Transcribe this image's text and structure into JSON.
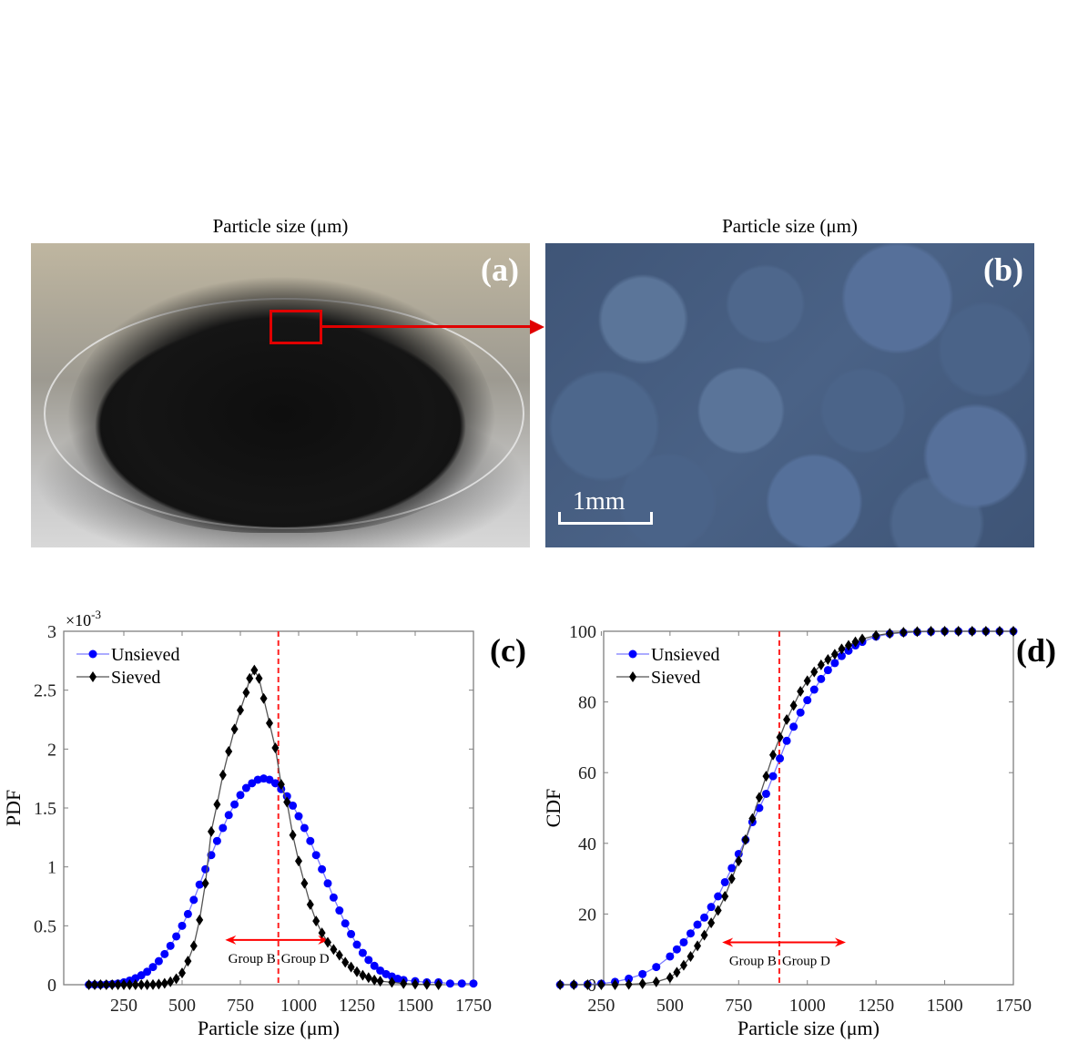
{
  "figure": {
    "panels": [
      {
        "id": "a",
        "label": "(a)",
        "caption": "Particle size (μm)",
        "type": "photo",
        "description": "Petri dish of black granular particles with red zoom box"
      },
      {
        "id": "b",
        "label": "(b)",
        "caption": "Particle size (μm)",
        "type": "photo",
        "description": "Microscope close-up of angular particles",
        "scale_bar_label": "1mm"
      },
      {
        "id": "c",
        "label": "(c)"
      },
      {
        "id": "d",
        "label": "(d)"
      }
    ],
    "colors": {
      "unsieved": "#0000ff",
      "unsieved_line": "#7a7aff",
      "sieved": "#000000",
      "sieved_line": "#555555",
      "threshold": "#ff2020",
      "axis": "#808080",
      "annotation_arrow": "#ff0000"
    }
  },
  "chart_data": [
    {
      "id": "c",
      "type": "line",
      "title": "",
      "xlabel": "Particle size (μm)",
      "ylabel": "PDF",
      "y_multiplier_label": "×10-3",
      "xlim": [
        0,
        1750
      ],
      "ylim": [
        0,
        3
      ],
      "xticks": [
        250,
        500,
        750,
        1000,
        1250,
        1500,
        1750
      ],
      "yticks": [
        0,
        0.5,
        1,
        1.5,
        2,
        2.5,
        3
      ],
      "ytick_labels": [
        "0",
        "0.5",
        "1",
        "1.5",
        "2",
        "2.5",
        "3"
      ],
      "grid": false,
      "legend_position": "upper-left",
      "threshold_x": 913,
      "annotations": {
        "arrow_from": 685,
        "arrow_to": 1130,
        "arrow_y": 0.38,
        "left_label": "Group B",
        "right_label": "Group D"
      },
      "series": [
        {
          "name": "Unsieved",
          "marker": "circle",
          "description": "log-normal-like PDF, peak ≈1.75e-3 near 850 μm",
          "x": [
            100,
            125,
            150,
            175,
            200,
            225,
            250,
            275,
            300,
            325,
            350,
            375,
            400,
            425,
            450,
            475,
            500,
            525,
            550,
            575,
            600,
            625,
            650,
            675,
            700,
            725,
            750,
            775,
            800,
            825,
            850,
            875,
            900,
            925,
            950,
            975,
            1000,
            1025,
            1050,
            1075,
            1100,
            1125,
            1150,
            1175,
            1200,
            1225,
            1250,
            1275,
            1300,
            1325,
            1350,
            1375,
            1400,
            1425,
            1450,
            1500,
            1550,
            1600,
            1650,
            1700,
            1750
          ],
          "y": [
            0,
            0,
            0,
            0.002,
            0.005,
            0.01,
            0.02,
            0.035,
            0.055,
            0.08,
            0.11,
            0.15,
            0.2,
            0.26,
            0.33,
            0.41,
            0.5,
            0.6,
            0.72,
            0.85,
            0.98,
            1.1,
            1.22,
            1.33,
            1.44,
            1.53,
            1.61,
            1.67,
            1.71,
            1.74,
            1.75,
            1.74,
            1.71,
            1.66,
            1.6,
            1.52,
            1.43,
            1.33,
            1.22,
            1.1,
            0.98,
            0.86,
            0.74,
            0.63,
            0.52,
            0.43,
            0.34,
            0.27,
            0.21,
            0.16,
            0.12,
            0.09,
            0.07,
            0.05,
            0.04,
            0.03,
            0.02,
            0.02,
            0.01,
            0.01,
            0.01
          ]
        },
        {
          "name": "Sieved",
          "marker": "diamond",
          "description": "narrower PDF, peak ≈2.67e-3 near 790 μm",
          "x": [
            100,
            125,
            150,
            175,
            200,
            225,
            250,
            275,
            300,
            325,
            350,
            375,
            400,
            425,
            450,
            475,
            500,
            525,
            550,
            575,
            600,
            625,
            650,
            675,
            700,
            725,
            750,
            775,
            790,
            810,
            830,
            850,
            875,
            900,
            925,
            950,
            975,
            1000,
            1025,
            1050,
            1075,
            1100,
            1125,
            1150,
            1175,
            1200,
            1225,
            1250,
            1275,
            1300,
            1325,
            1350,
            1400,
            1450,
            1500,
            1550,
            1600
          ],
          "y": [
            0,
            0,
            0,
            0,
            0,
            0,
            0,
            0,
            0,
            0,
            0,
            0.001,
            0.005,
            0.012,
            0.025,
            0.05,
            0.1,
            0.2,
            0.33,
            0.55,
            0.86,
            1.3,
            1.53,
            1.78,
            1.98,
            2.17,
            2.33,
            2.48,
            2.6,
            2.67,
            2.6,
            2.43,
            2.22,
            2.01,
            1.7,
            1.55,
            1.27,
            1.05,
            0.86,
            0.68,
            0.54,
            0.44,
            0.36,
            0.3,
            0.25,
            0.19,
            0.15,
            0.11,
            0.08,
            0.06,
            0.04,
            0.03,
            0.02,
            0.01,
            0.005,
            0.002,
            0
          ]
        }
      ]
    },
    {
      "id": "d",
      "type": "line",
      "title": "",
      "xlabel": "Particle size (μm)",
      "ylabel": "CDF",
      "xlim": [
        0,
        1750
      ],
      "ylim": [
        0,
        100
      ],
      "xticks": [
        250,
        500,
        750,
        1000,
        1250,
        1500,
        1750
      ],
      "yticks": [
        0,
        20,
        40,
        60,
        80,
        100
      ],
      "ytick_labels": [
        "0",
        "20",
        "40",
        "60",
        "80",
        "100"
      ],
      "grid": false,
      "legend_position": "upper-left",
      "threshold_x": 898,
      "annotations": {
        "arrow_from": 690,
        "arrow_to": 1140,
        "arrow_y": 12,
        "left_label": "Group B",
        "right_label": "Group D"
      },
      "series": [
        {
          "name": "Unsieved",
          "marker": "circle",
          "x": [
            100,
            150,
            200,
            250,
            300,
            350,
            400,
            450,
            500,
            525,
            550,
            575,
            600,
            625,
            650,
            675,
            700,
            725,
            750,
            775,
            800,
            825,
            850,
            875,
            900,
            925,
            950,
            975,
            1000,
            1025,
            1050,
            1075,
            1100,
            1125,
            1150,
            1175,
            1200,
            1250,
            1300,
            1350,
            1400,
            1450,
            1500,
            1550,
            1600,
            1650,
            1700,
            1750
          ],
          "y": [
            0,
            0,
            0.1,
            0.3,
            0.8,
            1.7,
            3,
            5,
            8,
            10,
            12,
            14.5,
            17,
            19,
            22,
            25,
            29,
            33,
            37,
            41,
            46,
            50,
            54,
            59,
            64,
            69,
            73,
            77,
            80.5,
            83.5,
            86.5,
            89,
            91,
            93,
            94.5,
            96,
            97,
            98.5,
            99.3,
            99.6,
            99.8,
            99.9,
            100,
            100,
            100,
            100,
            100,
            100
          ]
        },
        {
          "name": "Sieved",
          "marker": "diamond",
          "x": [
            100,
            150,
            200,
            250,
            300,
            350,
            400,
            450,
            500,
            525,
            550,
            575,
            600,
            625,
            650,
            675,
            700,
            725,
            750,
            775,
            800,
            825,
            850,
            875,
            900,
            925,
            950,
            975,
            1000,
            1025,
            1050,
            1075,
            1100,
            1125,
            1150,
            1175,
            1200,
            1250,
            1300,
            1350,
            1400,
            1450,
            1500,
            1550,
            1600,
            1650,
            1700,
            1750
          ],
          "y": [
            0,
            0,
            0,
            0,
            0,
            0.1,
            0.3,
            0.8,
            2,
            3.5,
            5.5,
            8,
            11,
            14,
            17.5,
            21,
            25,
            30,
            35,
            41,
            47,
            53,
            59,
            65,
            70,
            75,
            79,
            83,
            86,
            88.5,
            90.5,
            92,
            93.5,
            95,
            96,
            97,
            97.8,
            98.8,
            99.4,
            99.7,
            99.9,
            100,
            100,
            100,
            100,
            100,
            100,
            100
          ]
        }
      ]
    }
  ]
}
